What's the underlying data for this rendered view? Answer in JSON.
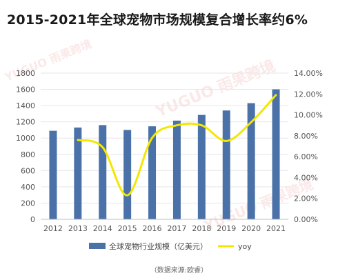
{
  "title": "2015-2021年全球宠物市场规模复合增长率约6%",
  "source": "（数据来源:欧睿）",
  "watermark": "YUGUO 雨果跨境",
  "chart_data": {
    "type": "bar+line",
    "categories": [
      "2012",
      "2013",
      "2014",
      "2015",
      "2016",
      "2017",
      "2018",
      "2019",
      "2020",
      "2021"
    ],
    "series": [
      {
        "name": "全球宠物行业规模（亿美元）",
        "type": "bar",
        "axis": "left",
        "color": "#4a72a8",
        "values": [
          1090,
          1130,
          1160,
          1100,
          1145,
          1215,
          1285,
          1340,
          1430,
          1600
        ]
      },
      {
        "name": "yoy",
        "type": "line",
        "axis": "right",
        "color": "#f5e600",
        "values": [
          null,
          0.076,
          0.069,
          0.023,
          0.078,
          0.09,
          0.09,
          0.075,
          0.093,
          0.119
        ]
      }
    ],
    "y_left": {
      "min": 0,
      "max": 1800,
      "step": 200
    },
    "y_right": {
      "min": 0,
      "max": 0.14,
      "step": 0.02
    },
    "y_left_ticks": [
      "0",
      "200",
      "400",
      "600",
      "800",
      "1000",
      "1200",
      "1400",
      "1600",
      "1800"
    ],
    "y_right_ticks": [
      "0.00%",
      "2.00%",
      "4.00%",
      "6.00%",
      "8.00%",
      "10.00%",
      "12.00%",
      "14.00%"
    ],
    "legend_position": "bottom"
  }
}
